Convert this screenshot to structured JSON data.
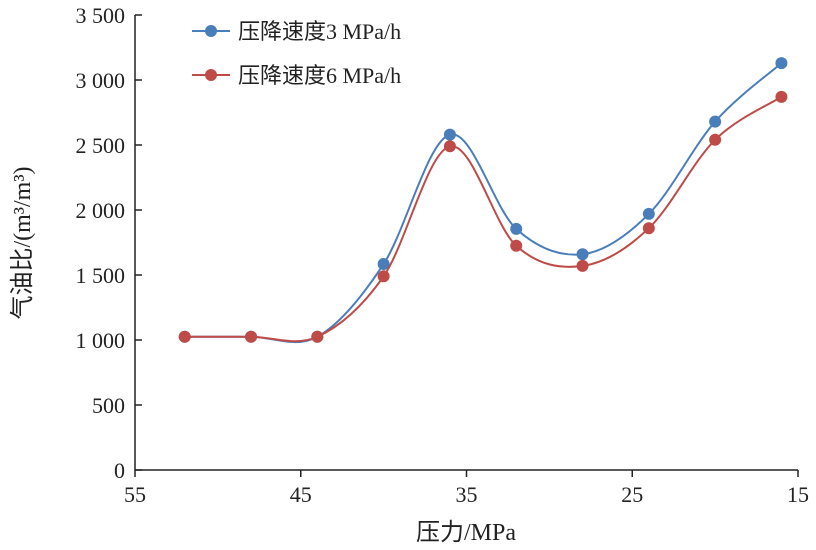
{
  "chart_data": {
    "type": "line",
    "xlabel": "压力/MPa",
    "ylabel": "气油比/(m³/m³)",
    "xlim": [
      55,
      15
    ],
    "ylim": [
      0,
      3500
    ],
    "x_reversed": true,
    "x_ticks": [
      55,
      45,
      35,
      25,
      15
    ],
    "x_tick_labels": [
      "55",
      "45",
      "35",
      "25",
      "15"
    ],
    "y_ticks": [
      0,
      500,
      1000,
      1500,
      2000,
      2500,
      3000,
      3500
    ],
    "y_tick_labels": [
      "0",
      "500",
      "1 000",
      "1 500",
      "2 000",
      "2 500",
      "3 000",
      "3 500"
    ],
    "grid": false,
    "legend_position": "top-left",
    "x": [
      52,
      48,
      44,
      40,
      36,
      32,
      28,
      24,
      20,
      16
    ],
    "series": [
      {
        "name": "压降速度3 MPa/h",
        "color": "#4a7ebb",
        "values": [
          1025,
          1025,
          1025,
          1585,
          2580,
          1855,
          1660,
          1970,
          2680,
          3130
        ]
      },
      {
        "name": "压降速度6 MPa/h",
        "color": "#be4b48",
        "values": [
          1025,
          1025,
          1025,
          1490,
          2490,
          1725,
          1570,
          1860,
          2540,
          2870
        ]
      }
    ]
  }
}
